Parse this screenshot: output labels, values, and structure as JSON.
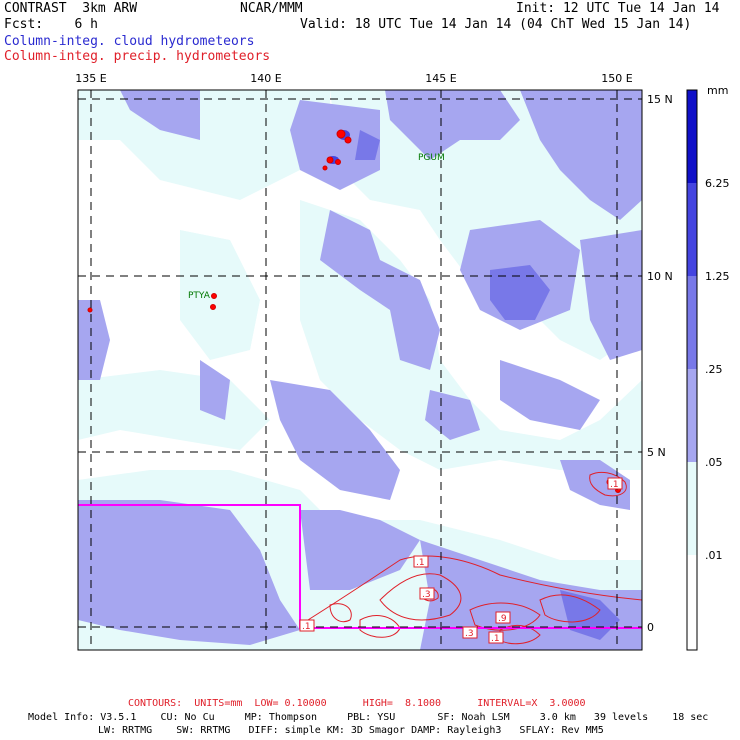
{
  "header": {
    "project": "CONTRAST",
    "model": "3km ARW",
    "center": "NCAR/MMM",
    "init": "Init: 12 UTC Tue 14 Jan 14",
    "fcst_label": "Fcst:",
    "fcst_value": "6 h",
    "valid": "Valid: 18 UTC Tue 14 Jan 14 (04 ChT Wed 15 Jan 14)",
    "field1": "Column-integ. cloud hydrometeors",
    "field2": "Column-integ. precip. hydrometeors"
  },
  "map": {
    "lon_labels": [
      "135 E",
      "140 E",
      "145 E",
      "150 E"
    ],
    "lat_labels": [
      "15 N",
      "10 N",
      "5 N",
      "0"
    ],
    "stations": [
      "PGUM",
      "PTYA"
    ],
    "contour_labels": [
      ".1",
      ".3",
      ".1",
      ".9",
      ".3",
      ".1",
      ".1"
    ]
  },
  "colorbar": {
    "unit": "mm",
    "levels": [
      "6.25",
      "1.25",
      ".25",
      ".05",
      ".01"
    ],
    "colors": [
      "#1010c8",
      "#4444e0",
      "#7878e8",
      "#a6a6f0",
      "#e6fafa",
      "#ffffff"
    ]
  },
  "footer": {
    "contours": "CONTOURS:  UNITS=mm  LOW= 0.10000      HIGH=  8.1000      INTERVAL=X  3.0000",
    "info1": "Model Info: V3.5.1    CU: No Cu     MP: Thompson     PBL: YSU       SF: Noah LSM     3.0 km   39 levels    18 sec",
    "info2": "LW: RRTMG    SW: RRTMG   DIFF: simple KM: 3D Smagor DAMP: Rayleigh3   SFLAY: Rev MM5"
  }
}
